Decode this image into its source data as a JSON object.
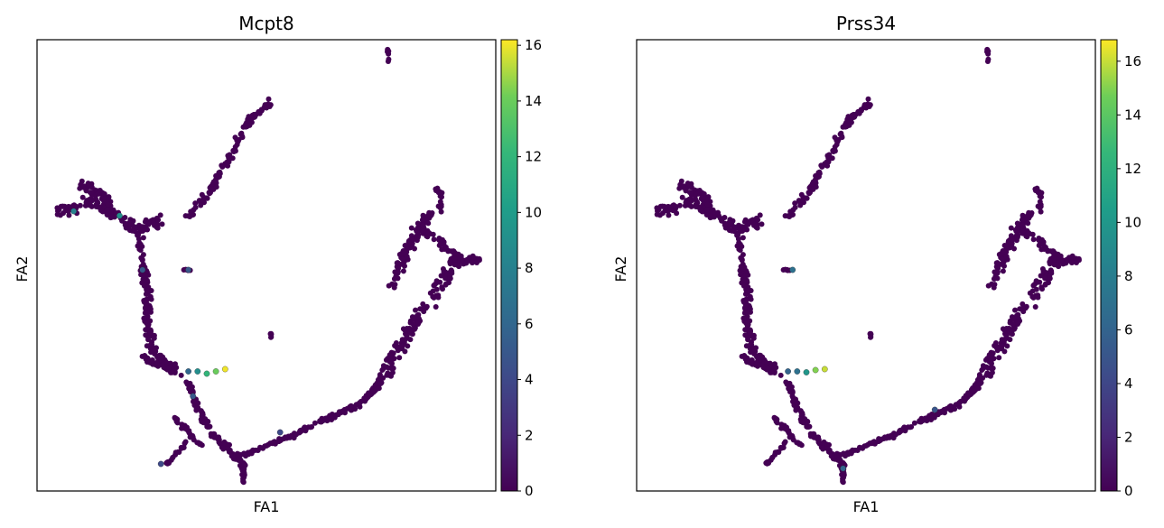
{
  "figure": {
    "panels": [
      {
        "title": "Mcpt8",
        "xlabel": "FA1",
        "ylabel": "FA2",
        "colorbar_ticks": [
          0,
          2,
          4,
          6,
          8,
          10,
          12,
          14,
          16
        ],
        "colorbar_range": [
          0,
          16.2
        ]
      },
      {
        "title": "Prss34",
        "xlabel": "FA1",
        "ylabel": "FA2",
        "colorbar_ticks": [
          0,
          2,
          4,
          6,
          8,
          10,
          12,
          14,
          16
        ],
        "colorbar_range": [
          0,
          16.8
        ]
      }
    ]
  },
  "chart_data": [
    {
      "type": "scatter",
      "title": "Mcpt8",
      "xlabel": "FA1",
      "ylabel": "FA2",
      "x_ticks_shown": false,
      "y_ticks_shown": false,
      "grid": false,
      "colormap": "viridis",
      "color_range": [
        0,
        16.2
      ],
      "colorbar_ticks": [
        0,
        2,
        4,
        6,
        8,
        10,
        12,
        14,
        16
      ],
      "hotspots": [
        {
          "x": 0.41,
          "y": 0.27,
          "value": 16
        },
        {
          "x": 0.39,
          "y": 0.265,
          "value": 14
        },
        {
          "x": 0.37,
          "y": 0.26,
          "value": 12
        },
        {
          "x": 0.35,
          "y": 0.265,
          "value": 9
        },
        {
          "x": 0.33,
          "y": 0.265,
          "value": 6
        },
        {
          "x": 0.18,
          "y": 0.61,
          "value": 9
        },
        {
          "x": 0.08,
          "y": 0.62,
          "value": 8
        },
        {
          "x": 0.34,
          "y": 0.21,
          "value": 5
        },
        {
          "x": 0.23,
          "y": 0.49,
          "value": 5
        },
        {
          "x": 0.33,
          "y": 0.49,
          "value": 5
        },
        {
          "x": 0.27,
          "y": 0.06,
          "value": 4
        },
        {
          "x": 0.53,
          "y": 0.13,
          "value": 4
        }
      ]
    },
    {
      "type": "scatter",
      "title": "Prss34",
      "xlabel": "FA1",
      "ylabel": "FA2",
      "x_ticks_shown": false,
      "y_ticks_shown": false,
      "grid": false,
      "colormap": "viridis",
      "color_range": [
        0,
        16.8
      ],
      "colorbar_ticks": [
        0,
        2,
        4,
        6,
        8,
        10,
        12,
        14,
        16
      ],
      "hotspots": [
        {
          "x": 0.41,
          "y": 0.27,
          "value": 16
        },
        {
          "x": 0.39,
          "y": 0.268,
          "value": 15
        },
        {
          "x": 0.37,
          "y": 0.263,
          "value": 10
        },
        {
          "x": 0.35,
          "y": 0.265,
          "value": 7
        },
        {
          "x": 0.33,
          "y": 0.265,
          "value": 6
        },
        {
          "x": 0.34,
          "y": 0.49,
          "value": 7
        },
        {
          "x": 0.45,
          "y": 0.05,
          "value": 6
        },
        {
          "x": 0.65,
          "y": 0.18,
          "value": 5
        }
      ]
    }
  ]
}
